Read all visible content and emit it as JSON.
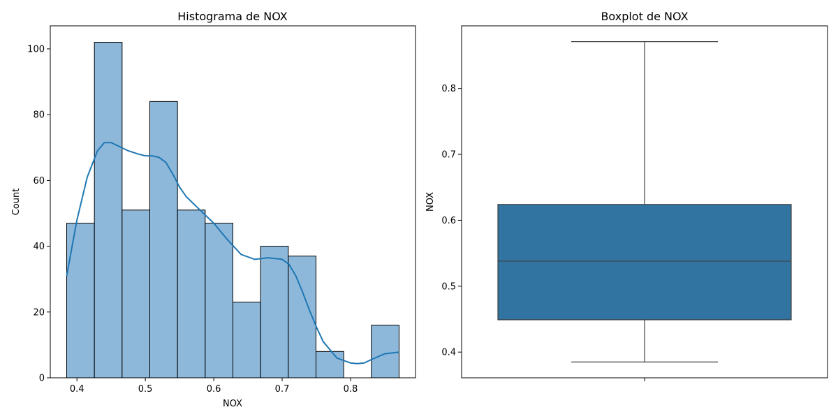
{
  "chart_data": [
    {
      "type": "bar",
      "subtype": "histogram-with-kde",
      "title": "Histograma de NOX",
      "xlabel": "NOX",
      "ylabel": "Count",
      "xlim": [
        0.361,
        0.895
      ],
      "ylim": [
        0,
        107
      ],
      "xticks": [
        0.4,
        0.5,
        0.6,
        0.7,
        0.8
      ],
      "xtick_labels": [
        "0.4",
        "0.5",
        "0.6",
        "0.7",
        "0.8"
      ],
      "yticks": [
        0,
        20,
        40,
        60,
        80,
        100
      ],
      "ytick_labels": [
        "0",
        "20",
        "40",
        "60",
        "80",
        "100"
      ],
      "bins": [
        {
          "x0": 0.385,
          "x1": 0.4255,
          "count": 47
        },
        {
          "x0": 0.4255,
          "x1": 0.466,
          "count": 102
        },
        {
          "x0": 0.466,
          "x1": 0.5065,
          "count": 51
        },
        {
          "x0": 0.5065,
          "x1": 0.547,
          "count": 84
        },
        {
          "x0": 0.547,
          "x1": 0.5875,
          "count": 51
        },
        {
          "x0": 0.5875,
          "x1": 0.628,
          "count": 47
        },
        {
          "x0": 0.628,
          "x1": 0.6685,
          "count": 23
        },
        {
          "x0": 0.6685,
          "x1": 0.709,
          "count": 40
        },
        {
          "x0": 0.709,
          "x1": 0.7495,
          "count": 37
        },
        {
          "x0": 0.7495,
          "x1": 0.79,
          "count": 8
        },
        {
          "x0": 0.79,
          "x1": 0.8305,
          "count": 0
        },
        {
          "x0": 0.8305,
          "x1": 0.871,
          "count": 16
        }
      ],
      "kde": {
        "x": [
          0.385,
          0.4,
          0.415,
          0.43,
          0.44,
          0.45,
          0.46,
          0.475,
          0.49,
          0.5,
          0.51,
          0.52,
          0.53,
          0.54,
          0.55,
          0.56,
          0.58,
          0.6,
          0.62,
          0.64,
          0.66,
          0.68,
          0.7,
          0.71,
          0.72,
          0.73,
          0.74,
          0.75,
          0.76,
          0.78,
          0.8,
          0.81,
          0.82,
          0.83,
          0.85,
          0.871
        ],
        "y": [
          31,
          48,
          61,
          69,
          71.5,
          71.5,
          70.5,
          69,
          68,
          67.5,
          67.5,
          67,
          65.5,
          62,
          58,
          55,
          51,
          47,
          42,
          37.5,
          36,
          36.5,
          36,
          34.5,
          31,
          26,
          20.5,
          15.5,
          11,
          6,
          4.5,
          4.3,
          4.5,
          5.5,
          7.3,
          7.8
        ]
      }
    },
    {
      "type": "box",
      "title": "Boxplot de NOX",
      "ylabel": "NOX",
      "ylim": [
        0.361,
        0.895
      ],
      "yticks": [
        0.4,
        0.5,
        0.6,
        0.7,
        0.8
      ],
      "ytick_labels": [
        "0.4",
        "0.5",
        "0.6",
        "0.7",
        "0.8"
      ],
      "stats": {
        "min": 0.385,
        "q1": 0.449,
        "median": 0.538,
        "q3": 0.624,
        "max": 0.871
      },
      "color": "#3274a1"
    }
  ]
}
